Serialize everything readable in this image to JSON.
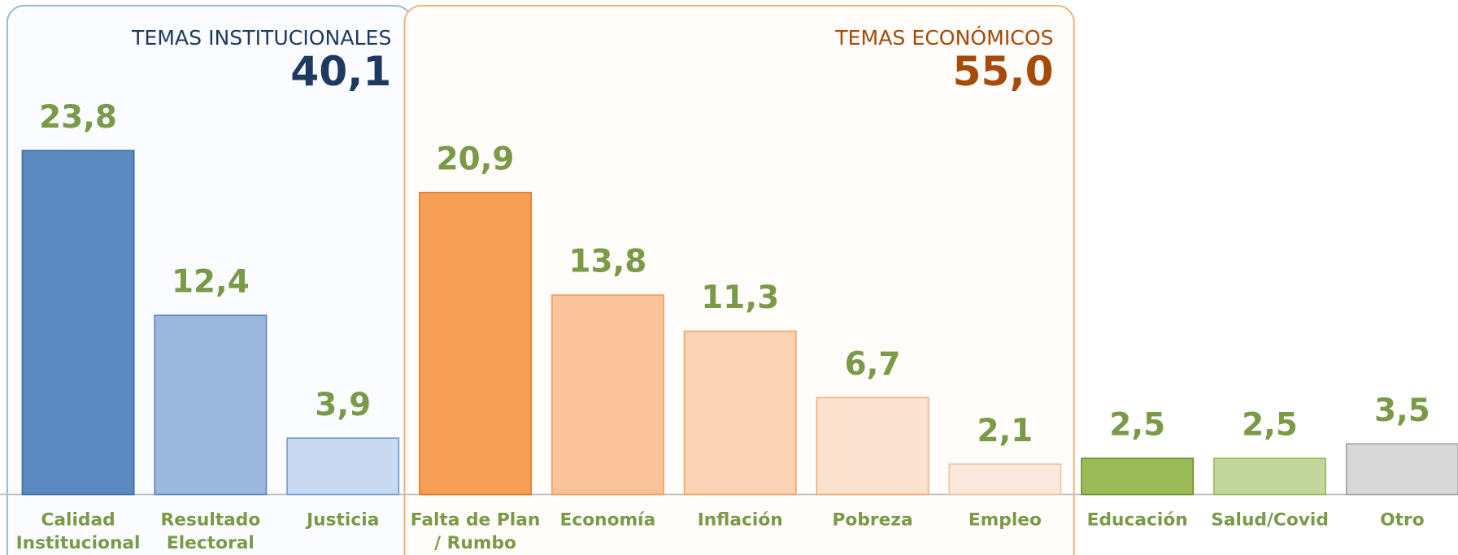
{
  "chart_data": {
    "type": "bar",
    "groups": [
      {
        "title": "TEMAS INSTITUCIONALES",
        "total": "40,1",
        "color": "#1f3a5f",
        "border": "#8eaad6",
        "fill": "#fafcff",
        "from": 0,
        "to": 2
      },
      {
        "title": "TEMAS ECONÓMICOS",
        "total": "55,0",
        "color": "#a64b0a",
        "border": "#f0a868",
        "fill": "#fffcf9",
        "from": 3,
        "to": 7
      }
    ],
    "categories": [
      [
        "Calidad",
        "Institucional"
      ],
      [
        "Resultado",
        "Electoral"
      ],
      [
        "Justicia"
      ],
      [
        "Falta de Plan",
        "/ Rumbo"
      ],
      [
        "Economía"
      ],
      [
        "Inflación"
      ],
      [
        "Pobreza"
      ],
      [
        "Empleo"
      ],
      [
        "Educación"
      ],
      [
        "Salud/Covid"
      ],
      [
        "Otro"
      ]
    ],
    "values": [
      23.8,
      12.4,
      3.9,
      20.9,
      13.8,
      11.3,
      6.7,
      2.1,
      2.5,
      2.5,
      3.5
    ],
    "value_labels": [
      "23,8",
      "12,4",
      "3,9",
      "20,9",
      "13,8",
      "11,3",
      "6,7",
      "2,1",
      "2,5",
      "2,5",
      "3,5"
    ],
    "colors": [
      "#5b89c0",
      "#9cb7dc",
      "#c8d9f1",
      "#f79f55",
      "#f9c298",
      "#fad3b4",
      "#fce3d0",
      "#fde9db",
      "#9bbb59",
      "#c3d69b",
      "#d9d9d9"
    ],
    "strokes": [
      "#3f6ea8",
      "#5b89c0",
      "#7aa0d0",
      "#e57b2a",
      "#f0a060",
      "#f0a868",
      "#f0b080",
      "#f5c4a0",
      "#6f8f30",
      "#9bbb59",
      "#a6a6a6"
    ],
    "ylim": [
      0,
      30
    ]
  }
}
